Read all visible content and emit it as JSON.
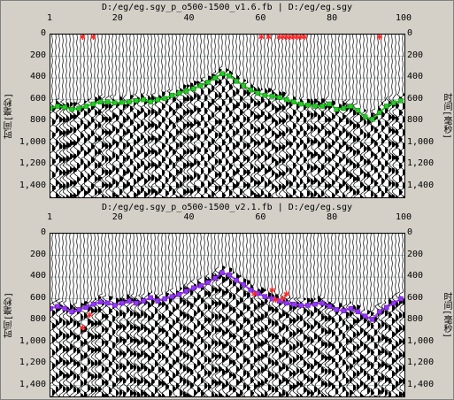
{
  "panels": [
    {
      "title": "D:/eg/eg.sgy_p_o500-1500_v1.6.fb | D:/eg/eg.sgy",
      "ylabel": "时间[毫秒]",
      "pick_color": "#22cc22",
      "outline_color": "#116611",
      "outlier_color": "#ff2a2a",
      "picks_x": [
        1,
        3,
        5,
        7,
        9,
        11,
        13,
        15,
        17,
        19,
        21,
        23,
        25,
        27,
        29,
        31,
        33,
        35,
        37,
        39,
        41,
        43,
        45,
        47,
        49,
        51,
        53,
        55,
        57,
        59,
        61,
        63,
        65,
        67,
        69,
        71,
        73,
        75,
        77,
        79,
        81,
        83,
        85,
        87,
        89,
        91,
        93,
        95,
        97,
        99
      ],
      "picks_y": [
        680,
        660,
        670,
        690,
        680,
        660,
        640,
        620,
        620,
        630,
        625,
        620,
        610,
        600,
        620,
        600,
        590,
        560,
        540,
        520,
        500,
        470,
        440,
        400,
        360,
        380,
        430,
        470,
        510,
        540,
        560,
        570,
        580,
        600,
        620,
        640,
        650,
        660,
        660,
        640,
        690,
        680,
        660,
        700,
        760,
        780,
        720,
        660,
        630,
        610
      ],
      "outliers_x": [
        10,
        13,
        60,
        62,
        65,
        66,
        67,
        68,
        69,
        70,
        71,
        72,
        93
      ],
      "outliers_y": [
        0,
        0,
        0,
        0,
        0,
        0,
        0,
        0,
        0,
        0,
        0,
        0,
        0
      ]
    },
    {
      "title": "D:/eg/eg.sgy_p_o500-1500_v2.1.fb | D:/eg/eg.sgy",
      "ylabel": "时间[毫秒]",
      "pick_color": "#9933ff",
      "outline_color": "#4a1a88",
      "outlier_color": "#ff2a2a",
      "picks_x": [
        1,
        3,
        5,
        7,
        9,
        11,
        13,
        15,
        17,
        19,
        21,
        23,
        25,
        27,
        29,
        31,
        33,
        35,
        37,
        39,
        41,
        43,
        45,
        47,
        49,
        51,
        53,
        55,
        57,
        59,
        61,
        63,
        65,
        67,
        69,
        71,
        73,
        75,
        77,
        79,
        81,
        83,
        85,
        87,
        89,
        91,
        93,
        95,
        97,
        99
      ],
      "picks_y": [
        690,
        670,
        690,
        720,
        700,
        680,
        650,
        630,
        640,
        660,
        640,
        620,
        640,
        620,
        590,
        620,
        600,
        580,
        560,
        530,
        500,
        480,
        450,
        410,
        360,
        380,
        430,
        470,
        520,
        550,
        580,
        600,
        620,
        640,
        650,
        660,
        660,
        650,
        640,
        670,
        700,
        710,
        690,
        720,
        760,
        790,
        720,
        680,
        640,
        600
      ],
      "outliers_x": [
        10,
        12,
        58,
        63,
        64,
        66,
        67
      ],
      "outliers_y": [
        870,
        750,
        560,
        520,
        610,
        600,
        560
      ]
    }
  ],
  "xaxis": {
    "ticks": [
      "1",
      "20",
      "40",
      "60",
      "80",
      "100"
    ],
    "tick_values": [
      1,
      20,
      40,
      60,
      80,
      100
    ],
    "min": 1,
    "max": 100
  },
  "yaxis": {
    "ticks": [
      "0",
      "200",
      "400",
      "600",
      "800",
      "1,000",
      "1,200",
      "1,400"
    ],
    "tick_values": [
      0,
      200,
      400,
      600,
      800,
      1000,
      1200,
      1400
    ],
    "min": 0,
    "max": 1500
  }
}
